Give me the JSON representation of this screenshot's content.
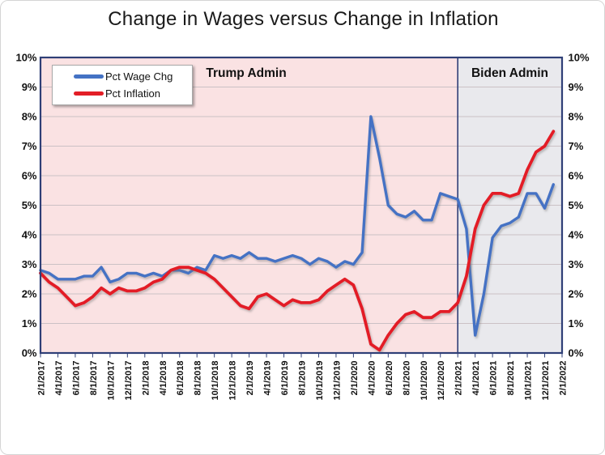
{
  "figure": {
    "title": "Change in Wages versus Change in Inflation"
  },
  "legend": {
    "items": [
      {
        "label": "Pct Wage Chg",
        "color": "#4472C4"
      },
      {
        "label": "Pct Inflation",
        "color": "#E31E26"
      }
    ]
  },
  "regions": {
    "trump": {
      "label": "Trump Admin",
      "bg": "#FAE2E3"
    },
    "biden": {
      "label": "Biden Admin",
      "bg": "#E9E9ED"
    }
  },
  "chart_data": {
    "type": "line",
    "title": "Change in Wages versus Change in Inflation",
    "xlabel": "",
    "ylabel": "",
    "ylim": [
      0,
      10
    ],
    "grid": true,
    "legend_position": "top-left",
    "x_start": "2/1/2017",
    "x_end": "2/1/2022",
    "x_interval": "monthly",
    "x_total_months": 60,
    "boundary_month_index": 48,
    "boundary_date": "2/1/2021",
    "x_tick_labels": [
      "2/1/2017",
      "4/1/2017",
      "6/1/2017",
      "8/1/2017",
      "10/1/2017",
      "12/1/2017",
      "2/1/2018",
      "4/1/2018",
      "6/1/2018",
      "8/1/2018",
      "10/1/2018",
      "12/1/2018",
      "2/1/2019",
      "4/1/2019",
      "6/1/2019",
      "8/1/2019",
      "10/1/2019",
      "12/1/2019",
      "2/1/2020",
      "4/1/2020",
      "6/1/2020",
      "8/1/2020",
      "10/1/2020",
      "12/1/2020",
      "2/1/2021",
      "4/1/2021",
      "6/1/2021",
      "8/1/2021",
      "10/1/2021",
      "12/1/2021",
      "2/1/2022"
    ],
    "y_tick_labels": [
      "0%",
      "1%",
      "2%",
      "3%",
      "4%",
      "5%",
      "6%",
      "7%",
      "8%",
      "9%",
      "10%"
    ],
    "y_axis_both_sides": true,
    "annotations": [
      "Trump Admin",
      "Biden Admin"
    ],
    "series": [
      {
        "name": "Pct Wage Chg",
        "color": "#4472C4",
        "values": [
          2.8,
          2.7,
          2.5,
          2.5,
          2.5,
          2.6,
          2.6,
          2.9,
          2.4,
          2.5,
          2.7,
          2.7,
          2.6,
          2.7,
          2.6,
          2.8,
          2.8,
          2.7,
          2.9,
          2.8,
          3.3,
          3.2,
          3.3,
          3.2,
          3.4,
          3.2,
          3.2,
          3.1,
          3.2,
          3.3,
          3.2,
          3.0,
          3.2,
          3.1,
          2.9,
          3.1,
          3.0,
          3.4,
          8.0,
          6.6,
          5.0,
          4.7,
          4.6,
          4.8,
          4.5,
          4.5,
          5.4,
          5.3,
          5.2,
          4.2,
          0.6,
          2.0,
          3.9,
          4.3,
          4.4,
          4.6,
          5.4,
          5.4,
          4.9,
          5.7
        ]
      },
      {
        "name": "Pct Inflation",
        "color": "#E31E26",
        "values": [
          2.7,
          2.4,
          2.2,
          1.9,
          1.6,
          1.7,
          1.9,
          2.2,
          2.0,
          2.2,
          2.1,
          2.1,
          2.2,
          2.4,
          2.5,
          2.8,
          2.9,
          2.9,
          2.8,
          2.7,
          2.5,
          2.2,
          1.9,
          1.6,
          1.5,
          1.9,
          2.0,
          1.8,
          1.6,
          1.8,
          1.7,
          1.7,
          1.8,
          2.1,
          2.3,
          2.5,
          2.3,
          1.5,
          0.3,
          0.1,
          0.6,
          1.0,
          1.3,
          1.4,
          1.2,
          1.2,
          1.4,
          1.4,
          1.7,
          2.6,
          4.2,
          5.0,
          5.4,
          5.4,
          5.3,
          5.4,
          6.2,
          6.8,
          7.0,
          7.5
        ]
      }
    ],
    "colors": {
      "plot_border": "#2F3F77",
      "gridline": "#CBC1C5",
      "trump_bg": "#FAE2E3",
      "biden_bg": "#E9E9ED",
      "tick_text": "#111111"
    }
  }
}
